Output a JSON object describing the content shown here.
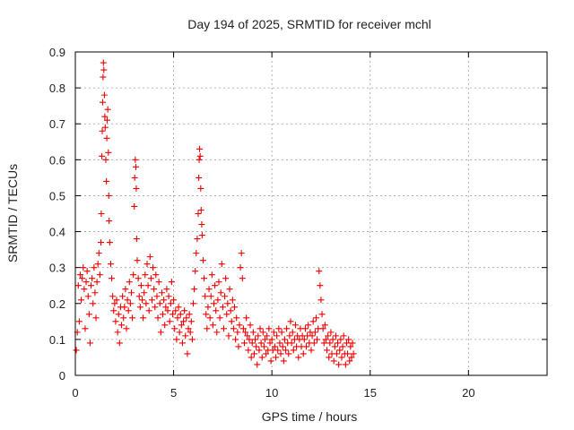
{
  "chart_data": {
    "type": "scatter",
    "title": "Day 194 of 2025, SRMTID for receiver mchl",
    "xlabel": "GPS time / hours",
    "ylabel": "SRMTID / TECUs",
    "xlim": [
      0,
      24
    ],
    "ylim": [
      0,
      0.9
    ],
    "xticks": [
      "0",
      "5",
      "10",
      "15",
      "20"
    ],
    "yticks": [
      "0",
      "0.1",
      "0.2",
      "0.3",
      "0.4",
      "0.5",
      "0.6",
      "0.7",
      "0.8",
      "0.9"
    ],
    "grid": true,
    "marker": "+",
    "color": "#ee0000",
    "series": [
      {
        "name": "SRMTID",
        "points": [
          [
            0.05,
            0.07
          ],
          [
            0.1,
            0.12
          ],
          [
            0.15,
            0.25
          ],
          [
            0.2,
            0.15
          ],
          [
            0.25,
            0.28
          ],
          [
            0.3,
            0.21
          ],
          [
            0.35,
            0.27
          ],
          [
            0.4,
            0.3
          ],
          [
            0.45,
            0.24
          ],
          [
            0.5,
            0.13
          ],
          [
            0.55,
            0.26
          ],
          [
            0.6,
            0.29
          ],
          [
            0.65,
            0.22
          ],
          [
            0.7,
            0.17
          ],
          [
            0.75,
            0.09
          ],
          [
            0.8,
            0.25
          ],
          [
            0.85,
            0.27
          ],
          [
            0.9,
            0.2
          ],
          [
            0.95,
            0.3
          ],
          [
            1.0,
            0.23
          ],
          [
            1.05,
            0.16
          ],
          [
            1.1,
            0.26
          ],
          [
            1.15,
            0.31
          ],
          [
            1.2,
            0.34
          ],
          [
            1.25,
            0.28
          ],
          [
            1.3,
            0.37
          ],
          [
            1.32,
            0.45
          ],
          [
            1.35,
            0.61
          ],
          [
            1.37,
            0.68
          ],
          [
            1.39,
            0.76
          ],
          [
            1.41,
            0.83
          ],
          [
            1.43,
            0.87
          ],
          [
            1.45,
            0.85
          ],
          [
            1.48,
            0.78
          ],
          [
            1.5,
            0.72
          ],
          [
            1.52,
            0.69
          ],
          [
            1.55,
            0.6
          ],
          [
            1.58,
            0.54
          ],
          [
            1.6,
            0.66
          ],
          [
            1.62,
            0.71
          ],
          [
            1.65,
            0.74
          ],
          [
            1.68,
            0.62
          ],
          [
            1.7,
            0.5
          ],
          [
            1.72,
            0.43
          ],
          [
            1.75,
            0.37
          ],
          [
            1.8,
            0.31
          ],
          [
            1.85,
            0.27
          ],
          [
            1.9,
            0.22
          ],
          [
            1.95,
            0.18
          ],
          [
            2.0,
            0.2
          ],
          [
            2.05,
            0.15
          ],
          [
            2.1,
            0.21
          ],
          [
            2.15,
            0.12
          ],
          [
            2.2,
            0.17
          ],
          [
            2.25,
            0.09
          ],
          [
            2.3,
            0.19
          ],
          [
            2.35,
            0.14
          ],
          [
            2.4,
            0.22
          ],
          [
            2.45,
            0.16
          ],
          [
            2.5,
            0.19
          ],
          [
            2.55,
            0.24
          ],
          [
            2.6,
            0.13
          ],
          [
            2.65,
            0.21
          ],
          [
            2.7,
            0.18
          ],
          [
            2.75,
            0.26
          ],
          [
            2.8,
            0.2
          ],
          [
            2.85,
            0.23
          ],
          [
            2.9,
            0.16
          ],
          [
            2.95,
            0.28
          ],
          [
            3.0,
            0.47
          ],
          [
            3.02,
            0.55
          ],
          [
            3.05,
            0.6
          ],
          [
            3.08,
            0.58
          ],
          [
            3.1,
            0.52
          ],
          [
            3.12,
            0.38
          ],
          [
            3.15,
            0.32
          ],
          [
            3.2,
            0.27
          ],
          [
            3.25,
            0.22
          ],
          [
            3.3,
            0.19
          ],
          [
            3.35,
            0.25
          ],
          [
            3.4,
            0.21
          ],
          [
            3.45,
            0.16
          ],
          [
            3.5,
            0.23
          ],
          [
            3.55,
            0.28
          ],
          [
            3.6,
            0.2
          ],
          [
            3.65,
            0.31
          ],
          [
            3.7,
            0.25
          ],
          [
            3.75,
            0.18
          ],
          [
            3.8,
            0.33
          ],
          [
            3.85,
            0.27
          ],
          [
            3.9,
            0.21
          ],
          [
            3.95,
            0.3
          ],
          [
            4.0,
            0.24
          ],
          [
            4.05,
            0.19
          ],
          [
            4.1,
            0.28
          ],
          [
            4.15,
            0.22
          ],
          [
            4.2,
            0.16
          ],
          [
            4.25,
            0.26
          ],
          [
            4.3,
            0.2
          ],
          [
            4.35,
            0.12
          ],
          [
            4.4,
            0.23
          ],
          [
            4.45,
            0.17
          ],
          [
            4.5,
            0.21
          ],
          [
            4.55,
            0.14
          ],
          [
            4.6,
            0.19
          ],
          [
            4.65,
            0.24
          ],
          [
            4.7,
            0.18
          ],
          [
            4.75,
            0.22
          ],
          [
            4.8,
            0.15
          ],
          [
            4.85,
            0.2
          ],
          [
            4.9,
            0.26
          ],
          [
            4.95,
            0.17
          ],
          [
            5.0,
            0.21
          ],
          [
            5.05,
            0.13
          ],
          [
            5.1,
            0.18
          ],
          [
            5.15,
            0.1
          ],
          [
            5.2,
            0.16
          ],
          [
            5.25,
            0.19
          ],
          [
            5.3,
            0.12
          ],
          [
            5.35,
            0.17
          ],
          [
            5.4,
            0.14
          ],
          [
            5.45,
            0.09
          ],
          [
            5.5,
            0.15
          ],
          [
            5.55,
            0.18
          ],
          [
            5.6,
            0.11
          ],
          [
            5.65,
            0.16
          ],
          [
            5.7,
            0.06
          ],
          [
            5.75,
            0.13
          ],
          [
            5.8,
            0.17
          ],
          [
            5.85,
            0.12
          ],
          [
            5.9,
            0.15
          ],
          [
            5.95,
            0.1
          ],
          [
            6.0,
            0.2
          ],
          [
            6.05,
            0.24
          ],
          [
            6.1,
            0.29
          ],
          [
            6.15,
            0.34
          ],
          [
            6.2,
            0.38
          ],
          [
            6.25,
            0.45
          ],
          [
            6.28,
            0.55
          ],
          [
            6.3,
            0.6
          ],
          [
            6.32,
            0.63
          ],
          [
            6.35,
            0.61
          ],
          [
            6.38,
            0.52
          ],
          [
            6.4,
            0.46
          ],
          [
            6.43,
            0.42
          ],
          [
            6.45,
            0.39
          ],
          [
            6.5,
            0.32
          ],
          [
            6.55,
            0.27
          ],
          [
            6.6,
            0.22
          ],
          [
            6.65,
            0.17
          ],
          [
            6.7,
            0.13
          ],
          [
            6.75,
            0.19
          ],
          [
            6.8,
            0.24
          ],
          [
            6.85,
            0.16
          ],
          [
            6.9,
            0.22
          ],
          [
            6.95,
            0.28
          ],
          [
            7.0,
            0.14
          ],
          [
            7.05,
            0.2
          ],
          [
            7.1,
            0.25
          ],
          [
            7.15,
            0.18
          ],
          [
            7.2,
            0.12
          ],
          [
            7.25,
            0.21
          ],
          [
            7.3,
            0.26
          ],
          [
            7.35,
            0.16
          ],
          [
            7.4,
            0.23
          ],
          [
            7.45,
            0.31
          ],
          [
            7.5,
            0.19
          ],
          [
            7.55,
            0.13
          ],
          [
            7.6,
            0.22
          ],
          [
            7.65,
            0.27
          ],
          [
            7.7,
            0.17
          ],
          [
            7.75,
            0.2
          ],
          [
            7.8,
            0.11
          ],
          [
            7.85,
            0.24
          ],
          [
            7.9,
            0.18
          ],
          [
            7.95,
            0.15
          ],
          [
            8.0,
            0.21
          ],
          [
            8.05,
            0.13
          ],
          [
            8.1,
            0.19
          ],
          [
            8.15,
            0.1
          ],
          [
            8.2,
            0.16
          ],
          [
            8.25,
            0.12
          ],
          [
            8.3,
            0.08
          ],
          [
            8.35,
            0.14
          ],
          [
            8.4,
            0.3
          ],
          [
            8.45,
            0.34
          ],
          [
            8.5,
            0.27
          ],
          [
            8.55,
            0.13
          ],
          [
            8.6,
            0.09
          ],
          [
            8.65,
            0.12
          ],
          [
            8.7,
            0.16
          ],
          [
            8.75,
            0.11
          ],
          [
            8.8,
            0.07
          ],
          [
            8.85,
            0.1
          ],
          [
            8.9,
            0.14
          ],
          [
            8.95,
            0.05
          ],
          [
            9.0,
            0.09
          ],
          [
            9.05,
            0.12
          ],
          [
            9.1,
            0.06
          ],
          [
            9.15,
            0.1
          ],
          [
            9.2,
            0.08
          ],
          [
            9.25,
            0.03
          ],
          [
            9.3,
            0.11
          ],
          [
            9.35,
            0.07
          ],
          [
            9.4,
            0.13
          ],
          [
            9.45,
            0.09
          ],
          [
            9.5,
            0.05
          ],
          [
            9.55,
            0.12
          ],
          [
            9.6,
            0.08
          ],
          [
            9.65,
            0.1
          ],
          [
            9.7,
            0.06
          ],
          [
            9.75,
            0.11
          ],
          [
            9.8,
            0.07
          ],
          [
            9.85,
            0.13
          ],
          [
            9.9,
            0.09
          ],
          [
            9.95,
            0.04
          ],
          [
            10.0,
            0.1
          ],
          [
            10.05,
            0.07
          ],
          [
            10.1,
            0.12
          ],
          [
            10.15,
            0.08
          ],
          [
            10.2,
            0.05
          ],
          [
            10.25,
            0.11
          ],
          [
            10.3,
            0.07
          ],
          [
            10.35,
            0.13
          ],
          [
            10.4,
            0.09
          ],
          [
            10.45,
            0.06
          ],
          [
            10.5,
            0.12
          ],
          [
            10.55,
            0.08
          ],
          [
            10.6,
            0.04
          ],
          [
            10.65,
            0.1
          ],
          [
            10.7,
            0.07
          ],
          [
            10.75,
            0.13
          ],
          [
            10.8,
            0.09
          ],
          [
            10.85,
            0.06
          ],
          [
            10.9,
            0.11
          ],
          [
            10.95,
            0.15
          ],
          [
            11.0,
            0.09
          ],
          [
            11.05,
            0.12
          ],
          [
            11.1,
            0.07
          ],
          [
            11.15,
            0.1
          ],
          [
            11.2,
            0.14
          ],
          [
            11.25,
            0.08
          ],
          [
            11.3,
            0.11
          ],
          [
            11.35,
            0.05
          ],
          [
            11.4,
            0.1
          ],
          [
            11.45,
            0.13
          ],
          [
            11.5,
            0.08
          ],
          [
            11.55,
            0.11
          ],
          [
            11.6,
            0.06
          ],
          [
            11.65,
            0.1
          ],
          [
            11.7,
            0.13
          ],
          [
            11.75,
            0.08
          ],
          [
            11.8,
            0.11
          ],
          [
            11.85,
            0.14
          ],
          [
            11.9,
            0.09
          ],
          [
            11.95,
            0.12
          ],
          [
            12.0,
            0.07
          ],
          [
            12.05,
            0.11
          ],
          [
            12.1,
            0.15
          ],
          [
            12.15,
            0.09
          ],
          [
            12.2,
            0.12
          ],
          [
            12.25,
            0.16
          ],
          [
            12.3,
            0.1
          ],
          [
            12.35,
            0.13
          ],
          [
            12.4,
            0.29
          ],
          [
            12.45,
            0.25
          ],
          [
            12.5,
            0.21
          ],
          [
            12.55,
            0.17
          ],
          [
            12.6,
            0.13
          ],
          [
            12.65,
            0.09
          ],
          [
            12.7,
            0.14
          ],
          [
            12.75,
            0.1
          ],
          [
            12.8,
            0.07
          ],
          [
            12.85,
            0.11
          ],
          [
            12.9,
            0.05
          ],
          [
            12.95,
            0.09
          ],
          [
            13.0,
            0.12
          ],
          [
            13.05,
            0.06
          ],
          [
            13.1,
            0.1
          ],
          [
            13.15,
            0.04
          ],
          [
            13.2,
            0.08
          ],
          [
            13.25,
            0.11
          ],
          [
            13.3,
            0.06
          ],
          [
            13.35,
            0.09
          ],
          [
            13.4,
            0.03
          ],
          [
            13.45,
            0.07
          ],
          [
            13.5,
            0.1
          ],
          [
            13.55,
            0.05
          ],
          [
            13.6,
            0.08
          ],
          [
            13.65,
            0.11
          ],
          [
            13.7,
            0.06
          ],
          [
            13.75,
            0.03
          ],
          [
            13.8,
            0.09
          ],
          [
            13.85,
            0.06
          ],
          [
            13.9,
            0.1
          ],
          [
            13.95,
            0.04
          ],
          [
            14.0,
            0.08
          ],
          [
            14.05,
            0.05
          ],
          [
            14.1,
            0.09
          ],
          [
            14.15,
            0.06
          ]
        ]
      }
    ]
  }
}
